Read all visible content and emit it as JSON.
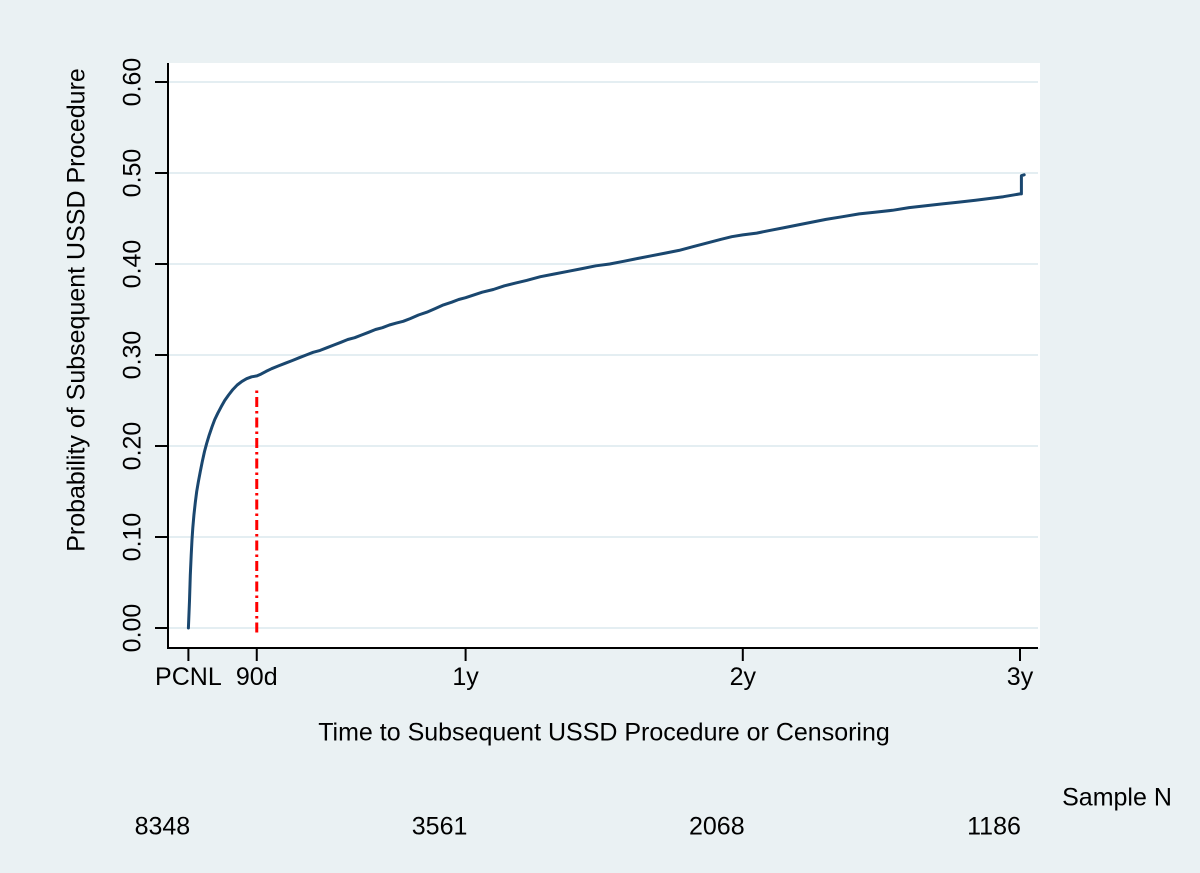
{
  "figure": {
    "background": "#EAF1F3",
    "plot_background": "#FFFFFF",
    "grid_color": "#DCE9EE",
    "axis_color": "#000000"
  },
  "chart_data": {
    "type": "line",
    "title": "",
    "xlabel": "Time to Subsequent USSD Procedure or Censoring",
    "ylabel": "Probability of Subsequent USSD Procedure",
    "grid": true,
    "xlim": [
      0,
      3.07
    ],
    "ylim": [
      0,
      0.62
    ],
    "x_ticks": [
      {
        "label": "PCNL",
        "t": 0
      },
      {
        "label": "90d",
        "t": 0.2466
      },
      {
        "label": "1y",
        "t": 1
      },
      {
        "label": "2y",
        "t": 2
      },
      {
        "label": "3y",
        "t": 3
      }
    ],
    "y_ticks": [
      {
        "label": "0.00",
        "v": 0.0
      },
      {
        "label": "0.10",
        "v": 0.1
      },
      {
        "label": "0.20",
        "v": 0.2
      },
      {
        "label": "0.30",
        "v": 0.3
      },
      {
        "label": "0.40",
        "v": 0.4
      },
      {
        "label": "0.50",
        "v": 0.5
      },
      {
        "label": "0.60",
        "v": 0.6
      }
    ],
    "series": [
      {
        "name": "Probability of Subsequent USSD Procedure",
        "color": "#1A476F",
        "width": 3,
        "points": [
          [
            0.0,
            0.0
          ],
          [
            0.004,
            0.03
          ],
          [
            0.007,
            0.058
          ],
          [
            0.01,
            0.08
          ],
          [
            0.013,
            0.097
          ],
          [
            0.016,
            0.11
          ],
          [
            0.02,
            0.124
          ],
          [
            0.025,
            0.138
          ],
          [
            0.03,
            0.15
          ],
          [
            0.036,
            0.161
          ],
          [
            0.043,
            0.172
          ],
          [
            0.05,
            0.183
          ],
          [
            0.058,
            0.194
          ],
          [
            0.066,
            0.203
          ],
          [
            0.075,
            0.212
          ],
          [
            0.085,
            0.221
          ],
          [
            0.095,
            0.229
          ],
          [
            0.106,
            0.236
          ],
          [
            0.118,
            0.243
          ],
          [
            0.131,
            0.25
          ],
          [
            0.145,
            0.256
          ],
          [
            0.16,
            0.262
          ],
          [
            0.176,
            0.267
          ],
          [
            0.193,
            0.271
          ],
          [
            0.21,
            0.274
          ],
          [
            0.228,
            0.276
          ],
          [
            0.247,
            0.277
          ],
          [
            0.262,
            0.279
          ],
          [
            0.28,
            0.282
          ],
          [
            0.3,
            0.285
          ],
          [
            0.325,
            0.288
          ],
          [
            0.35,
            0.291
          ],
          [
            0.375,
            0.294
          ],
          [
            0.4,
            0.297
          ],
          [
            0.425,
            0.3
          ],
          [
            0.45,
            0.303
          ],
          [
            0.475,
            0.305
          ],
          [
            0.5,
            0.308
          ],
          [
            0.525,
            0.311
          ],
          [
            0.55,
            0.314
          ],
          [
            0.575,
            0.317
          ],
          [
            0.6,
            0.319
          ],
          [
            0.625,
            0.322
          ],
          [
            0.65,
            0.325
          ],
          [
            0.675,
            0.328
          ],
          [
            0.7,
            0.33
          ],
          [
            0.725,
            0.333
          ],
          [
            0.75,
            0.335
          ],
          [
            0.775,
            0.337
          ],
          [
            0.8,
            0.34
          ],
          [
            0.83,
            0.344
          ],
          [
            0.86,
            0.347
          ],
          [
            0.89,
            0.351
          ],
          [
            0.92,
            0.355
          ],
          [
            0.95,
            0.358
          ],
          [
            0.975,
            0.361
          ],
          [
            1.0,
            0.363
          ],
          [
            1.03,
            0.366
          ],
          [
            1.06,
            0.369
          ],
          [
            1.1,
            0.372
          ],
          [
            1.14,
            0.376
          ],
          [
            1.18,
            0.379
          ],
          [
            1.22,
            0.382
          ],
          [
            1.27,
            0.386
          ],
          [
            1.32,
            0.389
          ],
          [
            1.37,
            0.392
          ],
          [
            1.42,
            0.395
          ],
          [
            1.47,
            0.398
          ],
          [
            1.52,
            0.4
          ],
          [
            1.57,
            0.403
          ],
          [
            1.62,
            0.406
          ],
          [
            1.67,
            0.409
          ],
          [
            1.72,
            0.412
          ],
          [
            1.77,
            0.415
          ],
          [
            1.82,
            0.419
          ],
          [
            1.87,
            0.423
          ],
          [
            1.92,
            0.427
          ],
          [
            1.96,
            0.43
          ],
          [
            2.0,
            0.432
          ],
          [
            2.05,
            0.434
          ],
          [
            2.1,
            0.437
          ],
          [
            2.15,
            0.44
          ],
          [
            2.2,
            0.443
          ],
          [
            2.25,
            0.446
          ],
          [
            2.3,
            0.449
          ],
          [
            2.36,
            0.452
          ],
          [
            2.42,
            0.455
          ],
          [
            2.48,
            0.457
          ],
          [
            2.54,
            0.459
          ],
          [
            2.6,
            0.462
          ],
          [
            2.66,
            0.464
          ],
          [
            2.72,
            0.466
          ],
          [
            2.78,
            0.468
          ],
          [
            2.84,
            0.47
          ],
          [
            2.89,
            0.472
          ],
          [
            2.94,
            0.474
          ],
          [
            2.98,
            0.476
          ],
          [
            3.0,
            0.477
          ],
          [
            3.005,
            0.477
          ],
          [
            3.005,
            0.497
          ],
          [
            3.015,
            0.498
          ]
        ]
      }
    ],
    "reference_line": {
      "label": "90d",
      "t": 0.2466,
      "p_from": -0.005,
      "p_to": 0.265,
      "color": "#FF0000",
      "pattern": "dash-dot"
    },
    "risk_table": {
      "label": "Sample N",
      "entries": [
        {
          "t": 0,
          "n": "8348"
        },
        {
          "t": 1,
          "n": "3561"
        },
        {
          "t": 2,
          "n": "2068"
        },
        {
          "t": 3,
          "n": "1186"
        }
      ]
    }
  }
}
